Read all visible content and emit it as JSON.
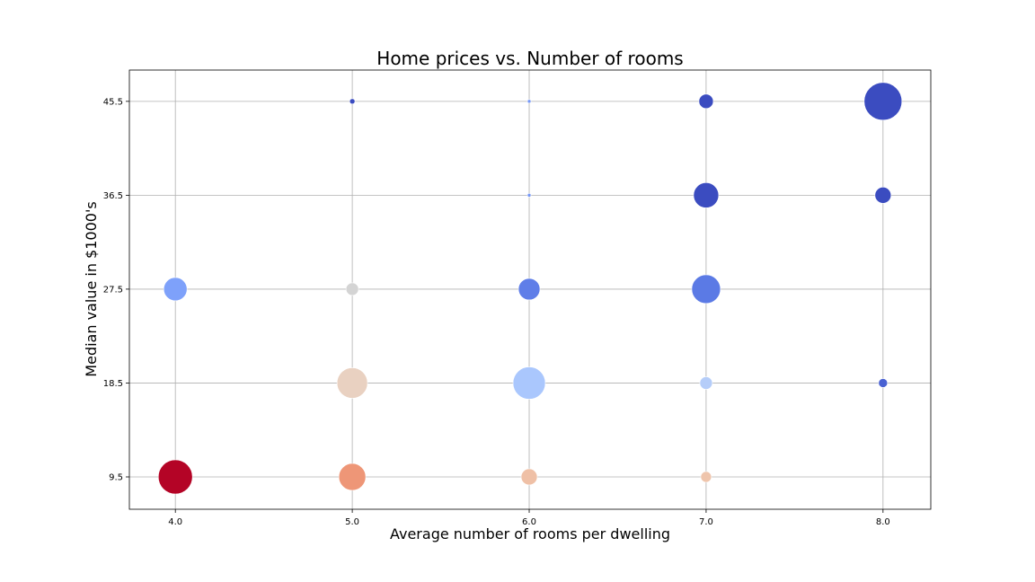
{
  "chart_data": {
    "type": "scatter",
    "title": "Home prices vs. Number of rooms",
    "xlabel": "Average number of rooms per dwelling",
    "ylabel": "Median value in $1000's",
    "xlim": [
      3.74,
      8.27
    ],
    "ylim": [
      6.4,
      48.5
    ],
    "x_ticks": [
      4.0,
      5.0,
      6.0,
      7.0,
      8.0
    ],
    "y_ticks": [
      9.5,
      18.5,
      27.5,
      36.5,
      45.5
    ],
    "grid": true,
    "points": [
      {
        "x": 5.0,
        "y": 45.5,
        "size": 3,
        "color": "#3b4cc0"
      },
      {
        "x": 6.0,
        "y": 45.5,
        "size": 2,
        "color": "#7597f6"
      },
      {
        "x": 7.0,
        "y": 45.5,
        "size": 8,
        "color": "#3b4cc0"
      },
      {
        "x": 8.0,
        "y": 45.5,
        "size": 21,
        "color": "#3b4cc0"
      },
      {
        "x": 6.0,
        "y": 36.5,
        "size": 2,
        "color": "#7597f6"
      },
      {
        "x": 7.0,
        "y": 36.5,
        "size": 14,
        "color": "#3b4cc0"
      },
      {
        "x": 8.0,
        "y": 36.5,
        "size": 9,
        "color": "#3b4cc0"
      },
      {
        "x": 4.0,
        "y": 27.5,
        "size": 13,
        "color": "#7ea1fa"
      },
      {
        "x": 5.0,
        "y": 27.5,
        "size": 7,
        "color": "#d4d4d4"
      },
      {
        "x": 6.0,
        "y": 27.5,
        "size": 12,
        "color": "#5f7ee8"
      },
      {
        "x": 7.0,
        "y": 27.5,
        "size": 16,
        "color": "#5b7ae5"
      },
      {
        "x": 5.0,
        "y": 18.5,
        "size": 17,
        "color": "#e9d1c1"
      },
      {
        "x": 6.0,
        "y": 18.5,
        "size": 18,
        "color": "#aac7fd"
      },
      {
        "x": 7.0,
        "y": 18.5,
        "size": 7,
        "color": "#b5cdf9"
      },
      {
        "x": 8.0,
        "y": 18.5,
        "size": 5,
        "color": "#4961d2"
      },
      {
        "x": 4.0,
        "y": 9.5,
        "size": 19,
        "color": "#b40426"
      },
      {
        "x": 5.0,
        "y": 9.5,
        "size": 15,
        "color": "#ee9677"
      },
      {
        "x": 6.0,
        "y": 9.5,
        "size": 9,
        "color": "#efc0a6"
      },
      {
        "x": 7.0,
        "y": 9.5,
        "size": 6,
        "color": "#efc5ac"
      }
    ]
  }
}
